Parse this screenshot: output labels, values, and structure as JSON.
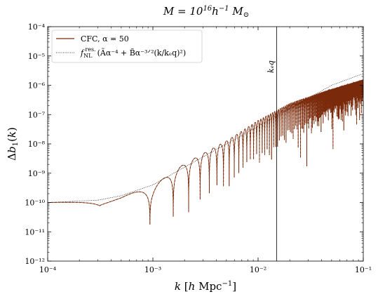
{
  "chart_data": {
    "type": "line",
    "title": "M = 10¹⁶h⁻¹ M⊙",
    "xlabel": "k [h Mpc⁻¹]",
    "ylabel": "Δb₁(k)",
    "xscale": "log",
    "yscale": "log",
    "xlim": [
      0.0001,
      0.1
    ],
    "ylim": [
      1e-12,
      0.0001
    ],
    "x_tick_labels": [
      "10⁻⁴",
      "10⁻³",
      "10⁻²",
      "10⁻¹"
    ],
    "y_tick_labels": [
      "10⁻¹²",
      "10⁻¹¹",
      "10⁻¹⁰",
      "10⁻⁹",
      "10⁻⁸",
      "10⁻⁷",
      "10⁻⁶",
      "10⁻⁵",
      "10⁻⁴"
    ],
    "x_ticks": [
      0.0001,
      0.001,
      0.01,
      0.1
    ],
    "y_ticks": [
      1e-12,
      1e-11,
      1e-10,
      1e-09,
      1e-08,
      1e-07,
      1e-06,
      1e-05,
      0.0001
    ],
    "legend_position": "top-left",
    "grid": false,
    "annotations": [
      {
        "text": "k_eq",
        "display": "kₑq",
        "x": 0.015,
        "type": "vertical-line"
      }
    ],
    "series": [
      {
        "name": "CFC, α = 50",
        "style": "solid",
        "color": "#7a2a0a",
        "description": "oscillating",
        "points": [
          [
            0.0001,
            1e-10
          ],
          [
            0.0003,
            1.05e-10
          ],
          [
            0.0005,
            1.5e-10
          ],
          [
            0.001,
            3.5e-10
          ],
          [
            0.002,
            2e-09
          ],
          [
            0.005,
            1.2e-08
          ],
          [
            0.01,
            6e-08
          ],
          [
            0.02,
            2.3e-07
          ],
          [
            0.05,
            7e-07
          ],
          [
            0.1,
            1.5e-06
          ]
        ]
      },
      {
        "name": "f_NL^res. (Ãα⁻⁴ + B̃α⁻³ᐟ²(k/k_eq)²)",
        "style": "dotted",
        "color": "#000000",
        "points": [
          [
            0.0001,
            1e-10
          ],
          [
            0.0003,
            1.2e-10
          ],
          [
            0.0005,
            1.7e-10
          ],
          [
            0.001,
            4e-10
          ],
          [
            0.002,
            1.6e-09
          ],
          [
            0.005,
            1e-08
          ],
          [
            0.01,
            4e-08
          ],
          [
            0.02,
            1.6e-07
          ],
          [
            0.05,
            1e-06
          ],
          [
            0.1,
            2.5e-06
          ]
        ]
      }
    ]
  },
  "legend": {
    "cfc_label": "CFC, α = 50",
    "fnl_prefix": "f",
    "fnl_sub": "NL",
    "fnl_sup": "res.",
    "fnl_rest": "(Ãα⁻⁴ + B̃α⁻³ᐟ²(k/kₑq)²)"
  },
  "colors": {
    "cfc": "#7a2a0a",
    "envelope": "#000000",
    "keq_line": "#000000"
  }
}
